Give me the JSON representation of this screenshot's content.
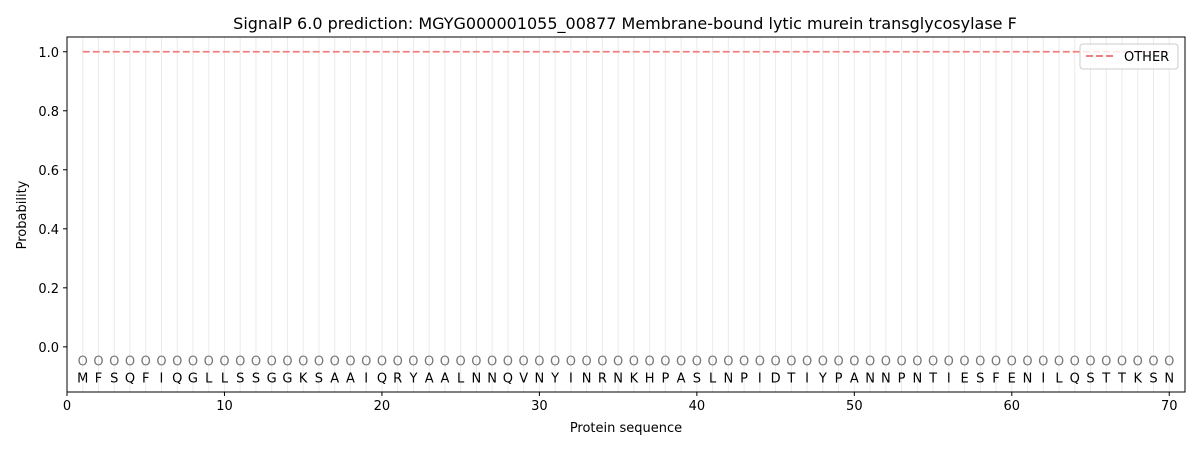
{
  "chart_data": {
    "type": "line",
    "title": "SignalP 6.0 prediction: MGYG000001055_00877 Membrane-bound lytic murein transglycosylase F",
    "xlabel": "Protein sequence",
    "ylabel": "Probability",
    "xlim": [
      0,
      71
    ],
    "ylim": [
      -0.153,
      1.05
    ],
    "xticks": [
      0,
      10,
      20,
      30,
      40,
      50,
      60,
      70
    ],
    "yticks": [
      0.0,
      0.2,
      0.4,
      0.6,
      0.8,
      1.0
    ],
    "grid": "vertical lines at each residue",
    "legend_position": "top-right",
    "sequence": "MFSQFIQGLLSSGGKSAAIQRYAALNNQVNYINRNKHPASLNPIDTIYPANNPNTIESFENILQSTTKSN",
    "predicted_labels": "OOOOOOOOOOOOOOOOOOOOOOOOOOOOOOOOOOOOOOOOOOOOOOOOOOOOOOOOOOOOOOOOOOOOOO",
    "series": [
      {
        "name": "OTHER",
        "color": "#f08080",
        "style": "dashed",
        "x_range": [
          1,
          70
        ],
        "value": 1.0
      }
    ]
  }
}
